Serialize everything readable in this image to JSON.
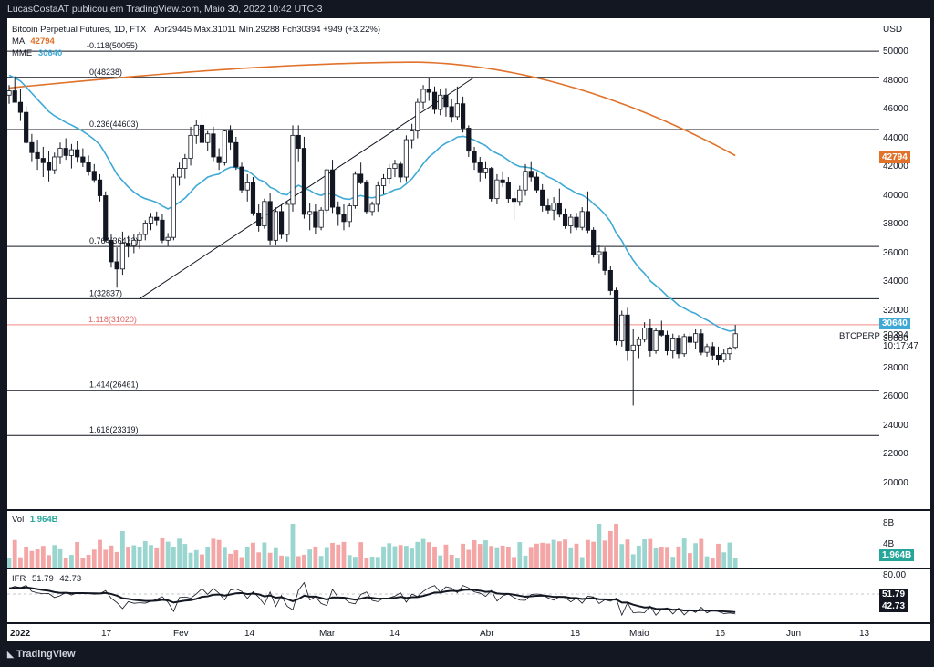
{
  "publisher": "LucasCostaAT publicou em TradingView.com, Maio 30, 2022 10:42 UTC-3",
  "legend": {
    "title": "Bitcoin Perpetual Futures, 1D, FTX",
    "ohlc": "Abr29445  Máx.31011  Mín.29288  Fch30394  +949 (+3.22%)",
    "ma_label": "MA",
    "ma_value": "42794",
    "mme_label": "MME",
    "mme_value": "30640",
    "vol_label": "Vol",
    "vol_value": "1.964B",
    "ifr_label": "IFR",
    "ifr_value1": "51.79",
    "ifr_value2": "42.73"
  },
  "axis": {
    "currency": "USD",
    "price_ticks": [
      "50000",
      "48000",
      "46000",
      "44000",
      "42000",
      "40000",
      "38000",
      "36000",
      "34000",
      "32000",
      "30000",
      "28000",
      "26000",
      "24000",
      "22000",
      "20000"
    ],
    "vol_ticks": [
      "8B",
      "4B"
    ],
    "ifr_ticks": [
      "80.00"
    ],
    "x_ticks": [
      "2022",
      "17",
      "Fev",
      "14",
      "Mar",
      "14",
      "Abr",
      "18",
      "Maio",
      "16",
      "Jun",
      "13"
    ]
  },
  "badges": {
    "ma": "42794",
    "mme": "30640",
    "last": "30394",
    "countdown": "10:17:47",
    "symbol": "BTCPERP",
    "vol": "1.964B",
    "ifr1": "51.79",
    "ifr2": "42.73"
  },
  "colors": {
    "up": "#26a69a",
    "down": "#131722",
    "ma": "#e0722b",
    "mme": "#3fa9d6",
    "fib_red": "#f28b82",
    "vol_up": "#9ad6cf",
    "vol_down": "#f4a5a5"
  },
  "brand": "TradingView",
  "chart_data": {
    "type": "candlestick",
    "title": "Bitcoin Perpetual Futures, 1D, FTX",
    "ylim": [
      19000,
      51500
    ],
    "fib_levels": [
      {
        "label": "-0.118(50055)",
        "value": 50055
      },
      {
        "label": "0(48238)",
        "value": 48238
      },
      {
        "label": "0.236(44603)",
        "value": 44603
      },
      {
        "label": "0.764(36472)",
        "value": 36472
      },
      {
        "label": "1(32837)",
        "value": 32837
      },
      {
        "label": "1.118(31020)",
        "value": 31020
      },
      {
        "label": "1.414(26461)",
        "value": 26461
      },
      {
        "label": "1.618(23319)",
        "value": 23319
      }
    ],
    "candles": [
      [
        47000,
        47700,
        46400,
        47300
      ],
      [
        47300,
        48300,
        46700,
        46500
      ],
      [
        46500,
        47400,
        45200,
        45800
      ],
      [
        45800,
        46200,
        43600,
        43700
      ],
      [
        43700,
        44300,
        42400,
        43000
      ],
      [
        43000,
        43900,
        41800,
        42600
      ],
      [
        42600,
        43400,
        41300,
        42300
      ],
      [
        42300,
        43100,
        41000,
        41800
      ],
      [
        41800,
        43000,
        41500,
        42700
      ],
      [
        42700,
        43700,
        42200,
        43300
      ],
      [
        43300,
        44000,
        42500,
        42800
      ],
      [
        42800,
        43600,
        41900,
        43200
      ],
      [
        43200,
        43800,
        42300,
        42700
      ],
      [
        42700,
        43300,
        42000,
        42300
      ],
      [
        42300,
        42800,
        41400,
        41700
      ],
      [
        41700,
        42200,
        40900,
        41100
      ],
      [
        41100,
        41500,
        39600,
        40000
      ],
      [
        40000,
        40300,
        36800,
        36900
      ],
      [
        36900,
        37300,
        35000,
        35400
      ],
      [
        35400,
        36400,
        33600,
        34900
      ],
      [
        34900,
        37500,
        34500,
        36700
      ],
      [
        36700,
        37200,
        35700,
        36500
      ],
      [
        36500,
        37300,
        36000,
        36900
      ],
      [
        36900,
        37500,
        36300,
        37300
      ],
      [
        37300,
        38300,
        36900,
        38100
      ],
      [
        38100,
        38800,
        37600,
        38500
      ],
      [
        38500,
        38900,
        37900,
        38300
      ],
      [
        38300,
        38700,
        36700,
        36900
      ],
      [
        36900,
        37400,
        36500,
        37100
      ],
      [
        37100,
        41500,
        36900,
        41300
      ],
      [
        41300,
        42300,
        40700,
        41900
      ],
      [
        41900,
        42900,
        41200,
        42600
      ],
      [
        42600,
        44800,
        42100,
        44200
      ],
      [
        44200,
        45300,
        43600,
        44900
      ],
      [
        44900,
        45800,
        43300,
        43700
      ],
      [
        43700,
        44500,
        43100,
        44300
      ],
      [
        44300,
        44800,
        42400,
        42700
      ],
      [
        42700,
        43300,
        41800,
        42300
      ],
      [
        42300,
        44600,
        42100,
        44500
      ],
      [
        44500,
        44900,
        43200,
        43700
      ],
      [
        43700,
        44100,
        41800,
        42000
      ],
      [
        42000,
        42300,
        40200,
        40400
      ],
      [
        40400,
        41500,
        39600,
        40900
      ],
      [
        40900,
        41300,
        38600,
        38800
      ],
      [
        38800,
        39400,
        37500,
        37900
      ],
      [
        37900,
        39800,
        37700,
        39600
      ],
      [
        39600,
        40200,
        36600,
        36900
      ],
      [
        36900,
        39200,
        36600,
        38900
      ],
      [
        38900,
        39400,
        37000,
        37300
      ],
      [
        37300,
        39600,
        36800,
        39400
      ],
      [
        39400,
        44900,
        38900,
        44200
      ],
      [
        44200,
        44900,
        42400,
        43300
      ],
      [
        43300,
        44100,
        38400,
        38700
      ],
      [
        38700,
        39500,
        37600,
        38900
      ],
      [
        38900,
        39400,
        37300,
        37800
      ],
      [
        37800,
        39200,
        37600,
        39000
      ],
      [
        39000,
        41900,
        38800,
        41800
      ],
      [
        41800,
        42500,
        38800,
        39200
      ],
      [
        39200,
        39600,
        37900,
        38700
      ],
      [
        38700,
        39400,
        37600,
        38200
      ],
      [
        38200,
        39500,
        37800,
        39300
      ],
      [
        39300,
        41700,
        39100,
        41500
      ],
      [
        41500,
        42300,
        40800,
        40900
      ],
      [
        40900,
        41100,
        38700,
        38900
      ],
      [
        38900,
        39600,
        38600,
        39400
      ],
      [
        39400,
        41000,
        38900,
        40700
      ],
      [
        40700,
        41500,
        40100,
        41200
      ],
      [
        41200,
        42200,
        40800,
        41900
      ],
      [
        41900,
        42500,
        41300,
        42200
      ],
      [
        42200,
        42400,
        40900,
        41300
      ],
      [
        41300,
        44200,
        41000,
        43900
      ],
      [
        43900,
        45000,
        43300,
        44500
      ],
      [
        44500,
        46800,
        44000,
        46500
      ],
      [
        46500,
        47700,
        46000,
        47400
      ],
      [
        47400,
        48200,
        46600,
        47200
      ],
      [
        47200,
        47600,
        45700,
        46000
      ],
      [
        46000,
        47400,
        45600,
        47000
      ],
      [
        47000,
        47500,
        45500,
        46200
      ],
      [
        46200,
        46700,
        45100,
        45500
      ],
      [
        45500,
        47600,
        45300,
        46400
      ],
      [
        46400,
        46900,
        44400,
        44700
      ],
      [
        44700,
        44900,
        42700,
        43100
      ],
      [
        43100,
        43400,
        41800,
        42300
      ],
      [
        42300,
        42700,
        41000,
        41600
      ],
      [
        41600,
        42400,
        41200,
        41900
      ],
      [
        41900,
        42000,
        39600,
        39800
      ],
      [
        39800,
        41500,
        39400,
        41100
      ],
      [
        41100,
        41700,
        40600,
        40900
      ],
      [
        40900,
        41300,
        39500,
        39800
      ],
      [
        39800,
        40300,
        38300,
        39600
      ],
      [
        39600,
        40700,
        39300,
        40400
      ],
      [
        40400,
        42200,
        40000,
        41700
      ],
      [
        41700,
        42400,
        41000,
        41300
      ],
      [
        41300,
        41600,
        40200,
        40400
      ],
      [
        40400,
        40800,
        38900,
        39300
      ],
      [
        39300,
        39800,
        38700,
        39000
      ],
      [
        39000,
        39900,
        38300,
        39500
      ],
      [
        39500,
        40500,
        38500,
        38700
      ],
      [
        38700,
        39100,
        37700,
        37900
      ],
      [
        37900,
        38700,
        37400,
        38500
      ],
      [
        38500,
        38800,
        37600,
        37800
      ],
      [
        37800,
        39200,
        37600,
        38900
      ],
      [
        38900,
        40300,
        37400,
        37600
      ],
      [
        37600,
        37800,
        35700,
        35900
      ],
      [
        35900,
        36600,
        35300,
        36100
      ],
      [
        36100,
        36400,
        34500,
        34800
      ],
      [
        34800,
        35100,
        33100,
        33400
      ],
      [
        33400,
        33600,
        29600,
        29900
      ],
      [
        29900,
        32000,
        29500,
        31700
      ],
      [
        31700,
        32200,
        28500,
        29200
      ],
      [
        29200,
        30700,
        25400,
        29600
      ],
      [
        29600,
        30200,
        28700,
        30000
      ],
      [
        30000,
        31200,
        29800,
        30800
      ],
      [
        30800,
        31400,
        28800,
        29200
      ],
      [
        29200,
        30800,
        29000,
        30600
      ],
      [
        30600,
        31300,
        30200,
        30300
      ],
      [
        30300,
        30600,
        28900,
        29200
      ],
      [
        29200,
        30400,
        28700,
        30100
      ],
      [
        30100,
        30300,
        28700,
        29000
      ],
      [
        29000,
        30400,
        28800,
        30200
      ],
      [
        30200,
        30500,
        29400,
        29800
      ],
      [
        29800,
        30700,
        29300,
        30400
      ],
      [
        30400,
        30700,
        28900,
        29100
      ],
      [
        29100,
        29700,
        28800,
        29500
      ],
      [
        29500,
        29800,
        28600,
        28900
      ],
      [
        28900,
        29500,
        28200,
        28600
      ],
      [
        28600,
        29300,
        28400,
        29000
      ],
      [
        29000,
        29500,
        28600,
        29400
      ],
      [
        29445,
        31011,
        29288,
        30394
      ]
    ],
    "ma": {
      "name": "MA",
      "start": 47500,
      "end": 42794
    },
    "mme": {
      "name": "MME",
      "end": 30640
    },
    "volume": {
      "last": "1.964B"
    },
    "ifr": {
      "values": [
        51.79,
        42.73
      ]
    }
  }
}
